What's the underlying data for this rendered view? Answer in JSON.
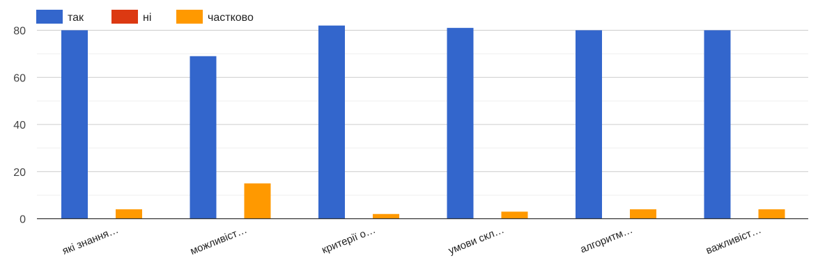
{
  "chart_data": {
    "type": "bar",
    "title": "",
    "xlabel": "",
    "ylabel": "",
    "categories": [
      "які знання…",
      "можливіст…",
      "критерії о…",
      "умови скл…",
      "алгоритм…",
      "важливіст…"
    ],
    "series": [
      {
        "name": "так",
        "color": "#3366cc",
        "values": [
          80,
          69,
          82,
          81,
          80,
          80
        ]
      },
      {
        "name": "ні",
        "color": "#dc3912",
        "values": [
          0,
          0,
          0,
          0,
          0,
          0
        ]
      },
      {
        "name": "частково",
        "color": "#ff9900",
        "values": [
          4,
          15,
          2,
          3,
          4,
          4
        ]
      }
    ],
    "ylim": [
      0,
      80
    ],
    "yticks": [
      0,
      20,
      40,
      60,
      80
    ],
    "grid": true,
    "legend": "top-left"
  }
}
